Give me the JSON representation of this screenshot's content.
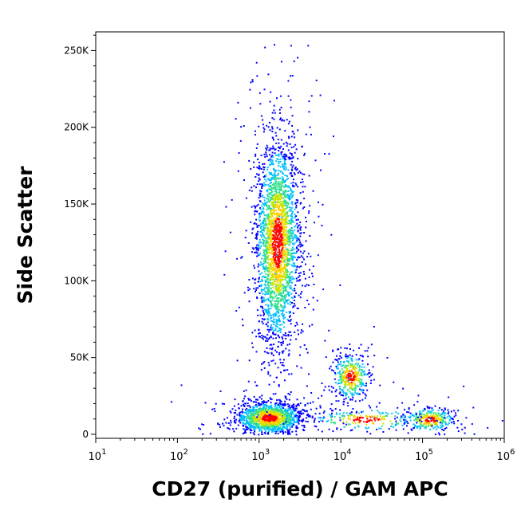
{
  "chart_data": {
    "type": "scatter",
    "title": "",
    "xlabel": "CD27 (purified) / GAM APC",
    "ylabel": "Side Scatter",
    "x_scale": "log",
    "xlim": [
      10,
      1000000
    ],
    "ylim": [
      0,
      262144
    ],
    "x_ticks": [
      {
        "value": 10,
        "base": "10",
        "exp": "1"
      },
      {
        "value": 100,
        "base": "10",
        "exp": "2"
      },
      {
        "value": 1000,
        "base": "10",
        "exp": "3"
      },
      {
        "value": 10000,
        "base": "10",
        "exp": "4"
      },
      {
        "value": 100000,
        "base": "10",
        "exp": "5"
      },
      {
        "value": 1000000,
        "base": "10",
        "exp": "6"
      }
    ],
    "y_ticks": [
      {
        "value": 0,
        "label": "0"
      },
      {
        "value": 50000,
        "label": "50K"
      },
      {
        "value": 100000,
        "label": "100K"
      },
      {
        "value": 150000,
        "label": "150K"
      },
      {
        "value": 200000,
        "label": "200K"
      },
      {
        "value": 250000,
        "label": "250K"
      }
    ],
    "colormap": [
      "#0000ff",
      "#00bfff",
      "#33e08a",
      "#c8e600",
      "#ffd000",
      "#ff0000"
    ],
    "populations": [
      {
        "name_hint": "cd27-neg-lymph",
        "cx": 1300,
        "cy": 11000,
        "sx_log": 0.2,
        "sy": 5000,
        "n": 1400
      },
      {
        "name_hint": "cd27-neg-granulo",
        "cx": 1650,
        "cy": 125000,
        "sx_log": 0.13,
        "sy": 33000,
        "n": 2600
      },
      {
        "name_hint": "cd27-pos-cells",
        "cx": 13000,
        "cy": 38000,
        "sx_log": 0.11,
        "sy": 7500,
        "n": 420
      },
      {
        "name_hint": "cd27-high-cells",
        "cx": 120000,
        "cy": 10000,
        "sx_log": 0.15,
        "sy": 3800,
        "n": 330
      },
      {
        "name_hint": "bridge",
        "cx": 20000,
        "cy": 10000,
        "sx_log": 0.35,
        "sy": 3500,
        "n": 200
      }
    ]
  }
}
